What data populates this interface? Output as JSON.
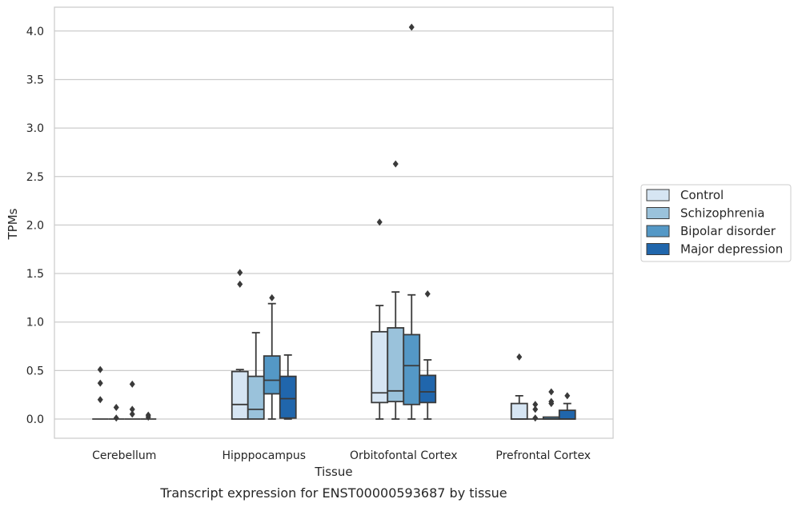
{
  "chart_data": {
    "type": "box",
    "title": "",
    "caption": "Transcript expression for ENST00000593687 by tissue",
    "xlabel": "Tissue",
    "ylabel": "TPMs",
    "ylim": [
      -0.19,
      4.25
    ],
    "yticks": [
      "0.0",
      "0.5",
      "1.0",
      "1.5",
      "2.0",
      "2.5",
      "3.0",
      "3.5",
      "4.0"
    ],
    "grid": true,
    "legend_position": "right",
    "categories": [
      "Cerebellum",
      "Hipppocampus",
      "Orbitofontal Cortex",
      "Prefrontal Cortex"
    ],
    "series": [
      {
        "name": "Control",
        "color": "#d6e5f3",
        "boxes": [
          {
            "min": 0,
            "q1": 0,
            "median": 0,
            "q3": 0,
            "max": 0,
            "outliers": [
              0.51,
              0.37,
              0.2
            ]
          },
          {
            "min": 0,
            "q1": 0,
            "median": 0.15,
            "q3": 0.49,
            "max": 0.51,
            "outliers": [
              1.51,
              1.39
            ]
          },
          {
            "min": 0,
            "q1": 0.17,
            "median": 0.27,
            "q3": 0.9,
            "max": 1.17,
            "outliers": [
              2.03
            ]
          },
          {
            "min": 0,
            "q1": 0,
            "median": 0,
            "q3": 0.16,
            "max": 0.24,
            "outliers": [
              0.64
            ]
          }
        ]
      },
      {
        "name": "Schizophrenia",
        "color": "#9ac2db",
        "boxes": [
          {
            "min": 0,
            "q1": 0,
            "median": 0,
            "q3": 0,
            "max": 0,
            "outliers": [
              0.12,
              0.01
            ]
          },
          {
            "min": 0,
            "q1": 0,
            "median": 0.1,
            "q3": 0.44,
            "max": 0.89,
            "outliers": []
          },
          {
            "min": 0,
            "q1": 0.18,
            "median": 0.29,
            "q3": 0.94,
            "max": 1.31,
            "outliers": [
              2.63
            ]
          },
          {
            "min": 0,
            "q1": 0,
            "median": 0,
            "q3": 0,
            "max": 0,
            "outliers": [
              0.15,
              0.1,
              0.01
            ]
          }
        ]
      },
      {
        "name": "Bipolar disorder",
        "color": "#5498c6",
        "boxes": [
          {
            "min": 0,
            "q1": 0,
            "median": 0,
            "q3": 0,
            "max": 0,
            "outliers": [
              0.36,
              0.1,
              0.05
            ]
          },
          {
            "min": 0,
            "q1": 0.26,
            "median": 0.4,
            "q3": 0.65,
            "max": 1.19,
            "outliers": [
              1.25
            ]
          },
          {
            "min": 0,
            "q1": 0.15,
            "median": 0.55,
            "q3": 0.87,
            "max": 1.28,
            "outliers": [
              4.04
            ]
          },
          {
            "min": 0,
            "q1": 0,
            "median": 0,
            "q3": 0.02,
            "max": 0.02,
            "outliers": [
              0.28,
              0.18,
              0.16
            ]
          }
        ]
      },
      {
        "name": "Major depression",
        "color": "#2066ac",
        "boxes": [
          {
            "min": 0,
            "q1": 0,
            "median": 0,
            "q3": 0,
            "max": 0,
            "outliers": [
              0.04,
              0.02
            ]
          },
          {
            "min": 0,
            "q1": 0.01,
            "median": 0.21,
            "q3": 0.44,
            "max": 0.66,
            "outliers": []
          },
          {
            "min": 0,
            "q1": 0.17,
            "median": 0.28,
            "q3": 0.45,
            "max": 0.61,
            "outliers": [
              1.29
            ]
          },
          {
            "min": 0,
            "q1": 0,
            "median": 0,
            "q3": 0.09,
            "max": 0.16,
            "outliers": [
              0.24
            ]
          }
        ]
      }
    ]
  }
}
